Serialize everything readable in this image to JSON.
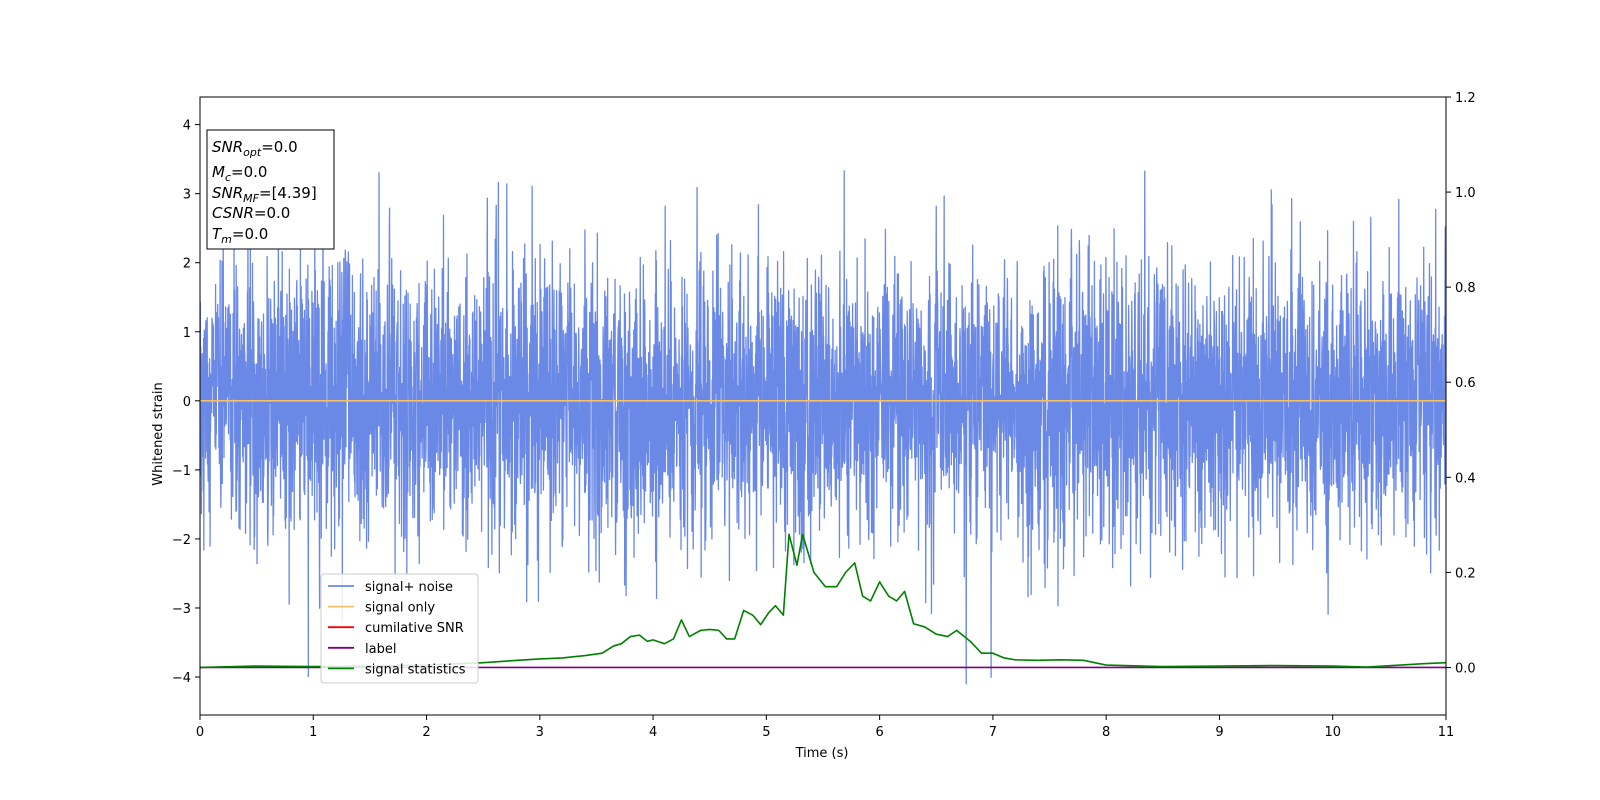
{
  "chart_data": {
    "type": "line",
    "xlabel": "Time (s)",
    "ylabel": "Whitened strain",
    "xlim": [
      0,
      11
    ],
    "ylim": [
      -4.55,
      4.4
    ],
    "y2lim": [
      -0.1,
      1.2
    ],
    "x_ticks": [
      0,
      1,
      2,
      3,
      4,
      5,
      6,
      7,
      8,
      9,
      10,
      11
    ],
    "y_ticks": [
      -4,
      -3,
      -2,
      -1,
      0,
      1,
      2,
      3,
      4
    ],
    "y_tick_labels": [
      "−4",
      "−3",
      "−2",
      "−1",
      "0",
      "1",
      "2",
      "3",
      "4"
    ],
    "y2_ticks": [
      0.0,
      0.2,
      0.4,
      0.6,
      0.8,
      1.0,
      1.2
    ],
    "y2_tick_labels": [
      "0.0",
      "0.2",
      "0.4",
      "0.6",
      "0.8",
      "1.0",
      "1.2"
    ],
    "grid": false,
    "legend": {
      "placement": "lower-left",
      "entries": [
        {
          "label": "signal+ noise",
          "color": "#6a88e6"
        },
        {
          "label": "signal only",
          "color": "#f5c066"
        },
        {
          "label": "cumilative SNR",
          "color": "#ff0000"
        },
        {
          "label": "label",
          "color": "#800080"
        },
        {
          "label": "signal statistics",
          "color": "#008000"
        }
      ]
    },
    "annotation": [
      {
        "base": "SNR",
        "sub": "opt",
        "text": "=0.0"
      },
      {
        "base": "M",
        "sub": "c",
        "text": "=0.0"
      },
      {
        "base": "SNR",
        "sub": "MF",
        "text": "=[4.39]"
      },
      {
        "base": "CSNR",
        "sub": "",
        "text": "=0.0"
      },
      {
        "base": "T",
        "sub": "m",
        "text": "=0.0"
      }
    ],
    "series": [
      {
        "name": "signal+ noise",
        "axis": "left",
        "color": "#6a88e6",
        "noise_std": 1.0,
        "x_range": [
          0,
          11
        ]
      },
      {
        "name": "signal only",
        "axis": "left",
        "color": "#f5c066",
        "x": [
          0,
          11
        ],
        "y": [
          0,
          0
        ]
      },
      {
        "name": "label",
        "axis": "right",
        "color": "#800080",
        "x": [
          0,
          11
        ],
        "y": [
          0,
          0
        ]
      },
      {
        "name": "signal statistics",
        "axis": "right",
        "color": "#008000",
        "x": [
          0,
          0.5,
          1.0,
          1.5,
          2.0,
          2.5,
          2.8,
          3.0,
          3.2,
          3.4,
          3.55,
          3.65,
          3.72,
          3.8,
          3.88,
          3.95,
          4.0,
          4.1,
          4.18,
          4.25,
          4.32,
          4.42,
          4.5,
          4.58,
          4.65,
          4.72,
          4.8,
          4.88,
          4.95,
          5.02,
          5.08,
          5.15,
          5.2,
          5.27,
          5.32,
          5.42,
          5.52,
          5.62,
          5.7,
          5.78,
          5.85,
          5.92,
          6.0,
          6.08,
          6.15,
          6.22,
          6.3,
          6.4,
          6.5,
          6.6,
          6.68,
          6.8,
          6.9,
          7.0,
          7.1,
          7.2,
          7.4,
          7.6,
          7.8,
          8.0,
          8.5,
          9.0,
          9.5,
          10.0,
          10.3,
          10.6,
          10.8,
          11.0
        ],
        "y": [
          0.0,
          0.003,
          0.002,
          0.003,
          0.005,
          0.01,
          0.015,
          0.018,
          0.02,
          0.025,
          0.03,
          0.045,
          0.05,
          0.065,
          0.068,
          0.055,
          0.058,
          0.05,
          0.06,
          0.1,
          0.065,
          0.078,
          0.08,
          0.078,
          0.06,
          0.06,
          0.12,
          0.11,
          0.09,
          0.115,
          0.13,
          0.11,
          0.28,
          0.215,
          0.28,
          0.2,
          0.17,
          0.17,
          0.2,
          0.22,
          0.15,
          0.14,
          0.18,
          0.15,
          0.14,
          0.16,
          0.092,
          0.085,
          0.07,
          0.065,
          0.078,
          0.055,
          0.03,
          0.03,
          0.02,
          0.016,
          0.015,
          0.016,
          0.015,
          0.005,
          0.002,
          0.003,
          0.004,
          0.003,
          0.001,
          0.005,
          0.008,
          0.01
        ]
      }
    ]
  }
}
